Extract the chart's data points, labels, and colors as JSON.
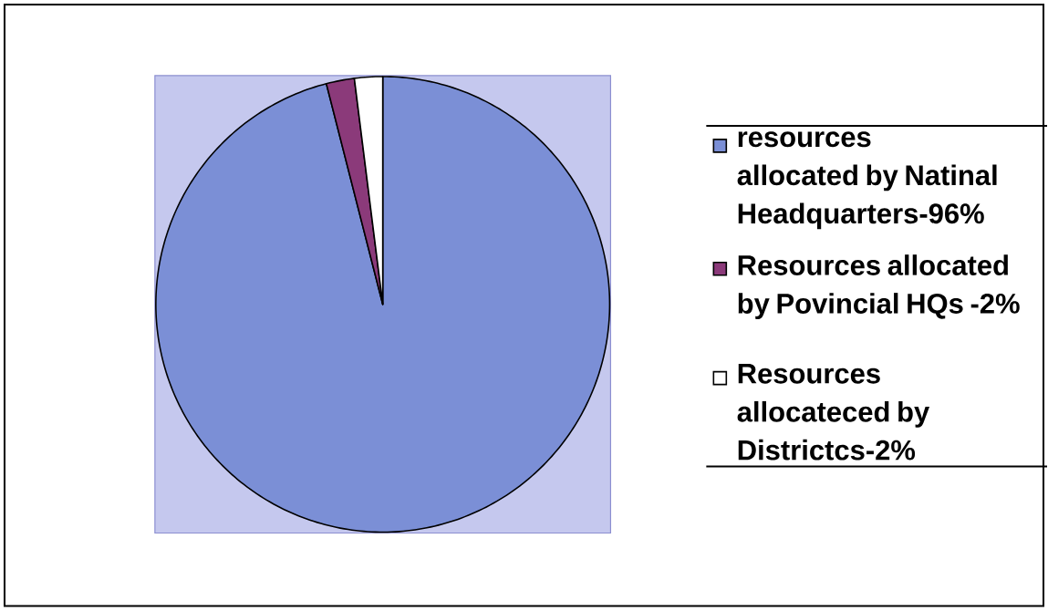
{
  "chart_data": {
    "type": "pie",
    "categories": [
      "resources allocated by Natinal Headquarters-96%",
      "Resources allocated by Povincial HQs -2%",
      "Resources allocateced by Districtcs-2%"
    ],
    "values": [
      96,
      2,
      2
    ],
    "colors": [
      "#7b8fd6",
      "#8b3a7a",
      "#ffffff"
    ],
    "legend": "right"
  }
}
